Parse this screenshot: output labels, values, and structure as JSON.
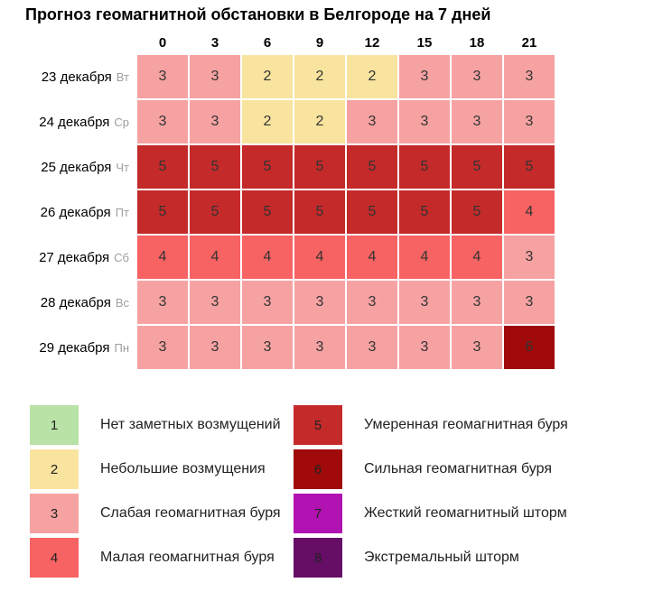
{
  "chart_data": {
    "type": "heatmap",
    "title": "Прогноз геомагнитной обстановки в Белгороде на 7 дней",
    "xlabel": "",
    "ylabel": "",
    "x_ticks": [
      "0",
      "3",
      "6",
      "9",
      "12",
      "15",
      "18",
      "21"
    ],
    "rows": [
      {
        "date": "23 декабря",
        "weekday": "Вт",
        "values": [
          3,
          3,
          2,
          2,
          2,
          3,
          3,
          3
        ]
      },
      {
        "date": "24 декабря",
        "weekday": "Ср",
        "values": [
          3,
          3,
          2,
          2,
          3,
          3,
          3,
          3
        ]
      },
      {
        "date": "25 декабря",
        "weekday": "Чт",
        "values": [
          5,
          5,
          5,
          5,
          5,
          5,
          5,
          5
        ]
      },
      {
        "date": "26 декабря",
        "weekday": "Пт",
        "values": [
          5,
          5,
          5,
          5,
          5,
          5,
          5,
          4
        ]
      },
      {
        "date": "27 декабря",
        "weekday": "Сб",
        "values": [
          4,
          4,
          4,
          4,
          4,
          4,
          4,
          3
        ]
      },
      {
        "date": "28 декабря",
        "weekday": "Вс",
        "values": [
          3,
          3,
          3,
          3,
          3,
          3,
          3,
          3
        ]
      },
      {
        "date": "29 декабря",
        "weekday": "Пн",
        "values": [
          3,
          3,
          3,
          3,
          3,
          3,
          3,
          6
        ]
      }
    ],
    "scale": [
      {
        "value": 1,
        "label": "Нет заметных возмущений",
        "color": "#b9e2a6"
      },
      {
        "value": 2,
        "label": "Небольшие возмущения",
        "color": "#f8e49e"
      },
      {
        "value": 3,
        "label": "Слабая геомагнитная буря",
        "color": "#f7a2a2"
      },
      {
        "value": 4,
        "label": "Малая геомагнитная буря",
        "color": "#f76262"
      },
      {
        "value": 5,
        "label": "Умеренная геомагнитная буря",
        "color": "#c42a2a"
      },
      {
        "value": 6,
        "label": "Сильная геомагнитная буря",
        "color": "#a00a0a"
      },
      {
        "value": 7,
        "label": "Жесткий геомагнитный шторм",
        "color": "#b112b1"
      },
      {
        "value": 8,
        "label": "Экстремальный шторм",
        "color": "#660d66"
      }
    ],
    "legend_columns": {
      "left": [
        1,
        2,
        3,
        4
      ],
      "right": [
        5,
        6,
        7,
        8
      ]
    },
    "legend_position": "bottom",
    "grid": true,
    "cell_text_color": "#333333"
  }
}
